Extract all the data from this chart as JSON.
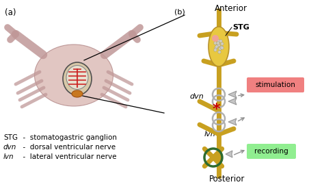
{
  "bg_color": "#ffffff",
  "title_a": "(a)",
  "title_b": "(b)",
  "anterior_label": "Anterior",
  "posterior_label": "Posterior",
  "stg_label": "STG",
  "dvn_label": "dvn",
  "lvn_label": "lvn",
  "stimulation_label": "stimulation",
  "recording_label": "recording",
  "nerve_color": "#C8A020",
  "nerve_edge": "#8B6914",
  "ganglion_fill": "#E8C840",
  "ganglion_edge": "#B8922A",
  "stim_box_color": "#F08080",
  "rec_box_color": "#90EE90",
  "rec_ring_color": "#2E6B2E",
  "dvn_ring_color": "#B0B0B0",
  "lvn_ring_color": "#B0B0B0",
  "asterisk_color": "#CC0000",
  "arrow_color": "#909090",
  "crab_body_color": "#DDB8B8",
  "crab_edge_color": "#C09090",
  "stns_fill": "#F5F0E8",
  "stns_edge": "#888888",
  "red_nerve": "#CC2222",
  "black": "#000000",
  "line_color": "#000000"
}
